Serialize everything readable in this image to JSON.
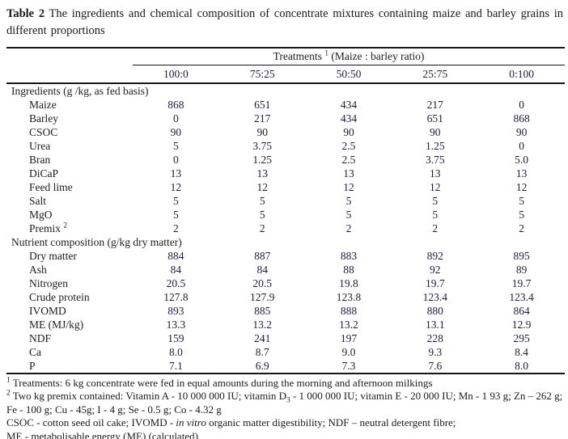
{
  "title": {
    "label": "Table 2",
    "text": " The ingredients and chemical composition of concentrate mixtures containing maize and barley grains in different proportions"
  },
  "table": {
    "header": {
      "treatments_label": "Treatments ",
      "treatments_sup": "1",
      "treatments_rest": " (Maize : barley ratio)",
      "columns": [
        "100:0",
        "75:25",
        "50:50",
        "25:75",
        "0:100"
      ]
    },
    "sections": [
      {
        "heading": "Ingredients (g /kg, as fed basis)",
        "rows": [
          {
            "label": "Maize",
            "values": [
              "868",
              "651",
              "434",
              "217",
              "0"
            ]
          },
          {
            "label": "Barley",
            "values": [
              "0",
              "217",
              "434",
              "651",
              "868"
            ]
          },
          {
            "label": "CSOC",
            "values": [
              "90",
              "90",
              "90",
              "90",
              "90"
            ]
          },
          {
            "label": "Urea",
            "values": [
              "5",
              "3.75",
              "2.5",
              "1.25",
              "0"
            ]
          },
          {
            "label": "Bran",
            "values": [
              "0",
              "1.25",
              "2.5",
              "3.75",
              "5.0"
            ]
          },
          {
            "label": "DiCaP",
            "values": [
              "13",
              "13",
              "13",
              "13",
              "13"
            ]
          },
          {
            "label": "Feed lime",
            "values": [
              "12",
              "12",
              "12",
              "12",
              "12"
            ]
          },
          {
            "label": "Salt",
            "values": [
              "5",
              "5",
              "5",
              "5",
              "5"
            ]
          },
          {
            "label": "MgO",
            "values": [
              "5",
              "5",
              "5",
              "5",
              "5"
            ]
          },
          {
            "label": "Premix",
            "sup": "2",
            "values": [
              "2",
              "2",
              "2",
              "2",
              "2"
            ]
          }
        ]
      },
      {
        "heading": "Nutrient composition (g/kg dry matter)",
        "rows": [
          {
            "label": "Dry matter",
            "values": [
              "884",
              "887",
              "883",
              "892",
              "895"
            ]
          },
          {
            "label": "Ash",
            "values": [
              "84",
              "84",
              "88",
              "92",
              "89"
            ]
          },
          {
            "label": "Nitrogen",
            "values": [
              "20.5",
              "20.5",
              "19.8",
              "19.7",
              "19.7"
            ]
          },
          {
            "label": "Crude protein",
            "values": [
              "127.8",
              "127.9",
              "123.8",
              "123.4",
              "123.4"
            ]
          },
          {
            "label": "IVOMD",
            "values": [
              "893",
              "885",
              "888",
              "880",
              "864"
            ]
          },
          {
            "label": "ME (MJ/kg)",
            "values": [
              "13.3",
              "13.2",
              "13.2",
              "13.1",
              "12.9"
            ]
          },
          {
            "label": "NDF",
            "values": [
              "159",
              "241",
              "197",
              "228",
              "295"
            ]
          },
          {
            "label": "Ca",
            "values": [
              "8.0",
              "8.7",
              "9.0",
              "9.3",
              "8.4"
            ]
          },
          {
            "label": "P",
            "values": [
              "7.1",
              "6.9",
              "7.3",
              "7.6",
              "8.0"
            ]
          }
        ]
      }
    ]
  },
  "footnotes": {
    "note1": {
      "sup": "1",
      "text": " Treatments: 6 kg concentrate were fed in equal amounts during the morning and afternoon milkings"
    },
    "note2": {
      "sup": "2",
      "pre": " Two kg premix contained: Vitamin A - 10 000 000 IU; vitamin D",
      "sub": "3",
      "post": " - 1 000 000 IU; vitamin E - 20 000 IU; Mn - 1 93 g; Zn – 262 g; Fe - 100 g; Cu - 45g; I - 4 g; Se - 0.5 g; Co - 4.32 g"
    },
    "note3": {
      "pre": "CSOC - cotton seed oil cake; IVOMD - ",
      "italic": "in vitro",
      "post": " organic matter digestibility; NDF – neutral detergent fibre;"
    },
    "note4": {
      "text": "ME - metabolisable energy (ME) (calculated)"
    }
  },
  "colors": {
    "background": "#ffffff",
    "text": "#1c1c22",
    "numbers": "#1d1d3c",
    "rule": "#161616"
  }
}
